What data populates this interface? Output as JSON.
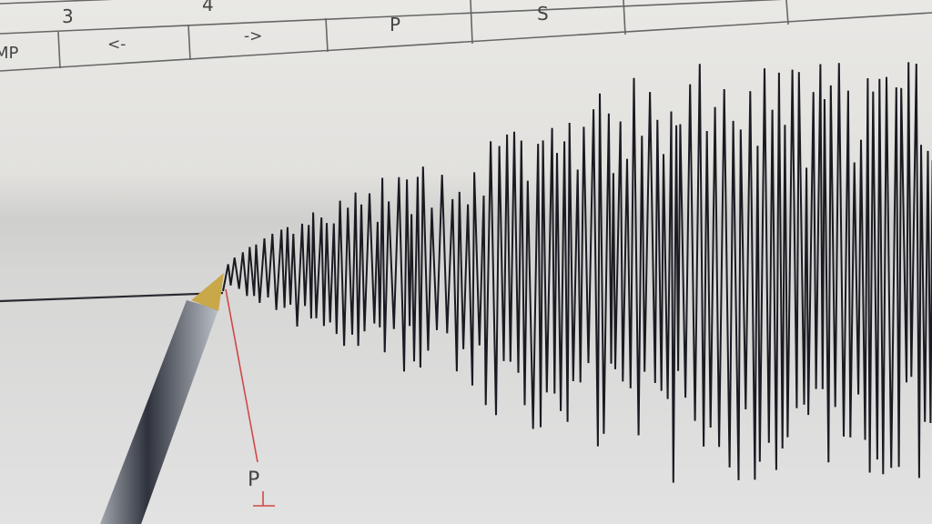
{
  "header_table": {
    "top_row": [
      "3",
      "4"
    ],
    "bottom_row": [
      "MP",
      "<-",
      "->",
      "P",
      "S"
    ]
  },
  "annotation": {
    "marker_label": "P",
    "marker_color": "#d04040"
  },
  "colors": {
    "paper": "#e4e3e0",
    "trace": "#1a1a22",
    "pen_cap": "#c9a84a"
  }
}
